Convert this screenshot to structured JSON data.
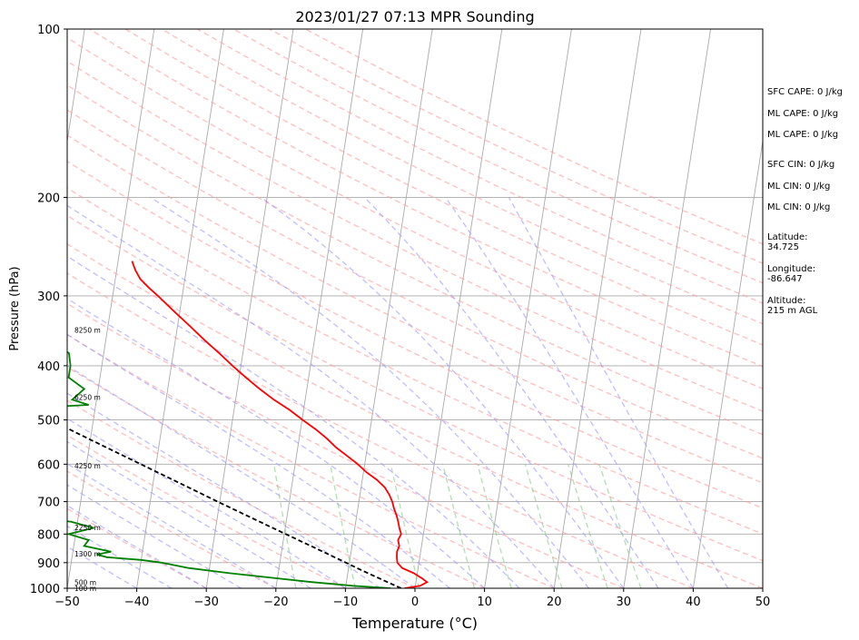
{
  "chart_data": {
    "type": "line",
    "title": "2023/01/27 07:13 MPR Sounding",
    "xlabel": "Temperature (°C)",
    "ylabel": "Pressure (hPa)",
    "xlim": [
      -50,
      50
    ],
    "ylim": [
      1000,
      100
    ],
    "y_scale": "log",
    "x_ticks": [
      -50,
      -40,
      -30,
      -20,
      -10,
      0,
      10,
      20,
      30,
      40,
      50
    ],
    "y_ticks": [
      1000,
      900,
      800,
      700,
      600,
      500,
      400,
      300,
      200,
      100
    ],
    "grid": true,
    "series": [
      {
        "id": "temperature",
        "color": "#ff0000",
        "pressure": [
          1000,
          990,
          975,
          960,
          940,
          920,
          900,
          880,
          860,
          840,
          820,
          800,
          780,
          760,
          740,
          720,
          700,
          680,
          660,
          640,
          620,
          600,
          580,
          560,
          540,
          520,
          500,
          480,
          460,
          440,
          420,
          400,
          380,
          360,
          340,
          320,
          300,
          290,
          280,
          270,
          260
        ],
        "values": [
          -1.5,
          0.7,
          1.6,
          0.8,
          -0.5,
          -2.3,
          -3.1,
          -3.3,
          -3.4,
          -3.2,
          -3.5,
          -3.2,
          -3.6,
          -3.9,
          -4.3,
          -4.8,
          -5.2,
          -5.8,
          -6.6,
          -7.9,
          -9.6,
          -11.0,
          -12.7,
          -14.5,
          -16.0,
          -17.8,
          -19.9,
          -22.0,
          -24.5,
          -26.8,
          -29.0,
          -31.2,
          -33.4,
          -35.8,
          -38.2,
          -40.8,
          -43.5,
          -45.0,
          -46.4,
          -47.3,
          -48.0
        ]
      },
      {
        "id": "dewpoint",
        "color": "#008000",
        "pressure": [
          1000,
          990,
          975,
          960,
          940,
          920,
          900,
          890,
          880,
          870,
          860,
          840,
          820,
          800,
          780,
          760,
          740,
          720,
          700,
          690,
          680,
          660,
          640,
          620,
          600,
          580,
          560,
          540,
          520,
          510,
          500,
          490,
          480,
          470,
          460,
          440,
          420,
          400,
          380,
          360,
          340,
          320,
          300,
          290,
          280,
          270,
          260
        ],
        "values": [
          -3.5,
          -9.0,
          -15.0,
          -20.0,
          -27.0,
          -33.0,
          -37.0,
          -40.0,
          -45.0,
          -46.5,
          -44.5,
          -48.5,
          -48.0,
          -51.0,
          -47.5,
          -51.0,
          -62.0,
          -53.0,
          -55.0,
          -65.0,
          -65.0,
          -73.0,
          -83.0,
          -87.0,
          -90.0,
          -95.0,
          -81.0,
          -76.0,
          -60.0,
          -70.0,
          -79.0,
          -76.0,
          -65.0,
          -51.0,
          -53.5,
          -52.0,
          -54.5,
          -54.5,
          -55.0,
          -58.0,
          -64.0,
          -64.5,
          -68.0,
          -78.0,
          -74.0,
          -76.0,
          -76.0
        ]
      },
      {
        "id": "parcel",
        "color": "#000000",
        "pressure": [
          1000,
          975,
          950,
          925,
          900,
          850,
          800,
          750,
          700,
          650,
          600,
          550,
          500,
          450,
          400,
          350,
          300
        ],
        "values": [
          -2.0,
          -4.1,
          -6.2,
          -8.4,
          -10.5,
          -15.0,
          -19.8,
          -24.9,
          -30.3,
          -36.0,
          -42.2,
          -48.9,
          -56.2,
          -64.2,
          -73.0,
          -83.0,
          -94.4
        ]
      }
    ],
    "height_labels": [
      {
        "pressure": 1000,
        "label": "100 m"
      },
      {
        "pressure": 976,
        "label": "500 m"
      },
      {
        "pressure": 868,
        "label": "1300 m"
      },
      {
        "pressure": 778,
        "label": "2250 m"
      },
      {
        "pressure": 604,
        "label": "4250 m"
      },
      {
        "pressure": 455,
        "label": "6250 m"
      },
      {
        "pressure": 345,
        "label": "8250 m"
      }
    ],
    "stats": [
      "SFC CAPE: 0 J/kg",
      "ML CAPE: 0 J/kg",
      "ML CAPE: 0 J/kg",
      "SFC CIN: 0 J/kg",
      "ML CIN: 0 J/kg",
      "ML CIN: 0 J/kg"
    ],
    "location": [
      {
        "label": "Latitude:",
        "value": "34.725"
      },
      {
        "label": "Longitude:",
        "value": "-86.647"
      },
      {
        "label": "Altitude:",
        "value": "215 m AGL"
      }
    ],
    "colors": {
      "isotherm": "#aaaaaa",
      "dry_adiabat": "#ff9999",
      "moist_adiabat": "#9999ff",
      "mixing_ratio": "#88cc88"
    }
  }
}
